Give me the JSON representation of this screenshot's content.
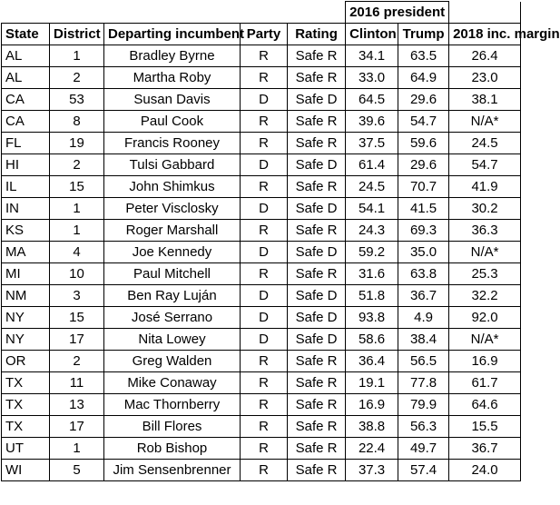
{
  "group_header": "2016 president",
  "columns": {
    "state": "State",
    "district": "District",
    "incumbent": "Departing incumbent",
    "party": "Party",
    "rating": "Rating",
    "clinton": "Clinton",
    "trump": "Trump",
    "margin": "2018 inc. margin"
  },
  "rows": [
    {
      "state": "AL",
      "district": "1",
      "incumbent": "Bradley Byrne",
      "party": "R",
      "rating": "Safe R",
      "clinton": "34.1",
      "trump": "63.5",
      "margin": "26.4"
    },
    {
      "state": "AL",
      "district": "2",
      "incumbent": "Martha Roby",
      "party": "R",
      "rating": "Safe R",
      "clinton": "33.0",
      "trump": "64.9",
      "margin": "23.0"
    },
    {
      "state": "CA",
      "district": "53",
      "incumbent": "Susan Davis",
      "party": "D",
      "rating": "Safe D",
      "clinton": "64.5",
      "trump": "29.6",
      "margin": "38.1"
    },
    {
      "state": "CA",
      "district": "8",
      "incumbent": "Paul Cook",
      "party": "R",
      "rating": "Safe R",
      "clinton": "39.6",
      "trump": "54.7",
      "margin": "N/A*"
    },
    {
      "state": "FL",
      "district": "19",
      "incumbent": "Francis Rooney",
      "party": "R",
      "rating": "Safe R",
      "clinton": "37.5",
      "trump": "59.6",
      "margin": "24.5"
    },
    {
      "state": "HI",
      "district": "2",
      "incumbent": "Tulsi Gabbard",
      "party": "D",
      "rating": "Safe D",
      "clinton": "61.4",
      "trump": "29.6",
      "margin": "54.7"
    },
    {
      "state": "IL",
      "district": "15",
      "incumbent": "John Shimkus",
      "party": "R",
      "rating": "Safe R",
      "clinton": "24.5",
      "trump": "70.7",
      "margin": "41.9"
    },
    {
      "state": "IN",
      "district": "1",
      "incumbent": "Peter Visclosky",
      "party": "D",
      "rating": "Safe D",
      "clinton": "54.1",
      "trump": "41.5",
      "margin": "30.2"
    },
    {
      "state": "KS",
      "district": "1",
      "incumbent": "Roger Marshall",
      "party": "R",
      "rating": "Safe R",
      "clinton": "24.3",
      "trump": "69.3",
      "margin": "36.3"
    },
    {
      "state": "MA",
      "district": "4",
      "incumbent": "Joe Kennedy",
      "party": "D",
      "rating": "Safe D",
      "clinton": "59.2",
      "trump": "35.0",
      "margin": "N/A*"
    },
    {
      "state": "MI",
      "district": "10",
      "incumbent": "Paul Mitchell",
      "party": "R",
      "rating": "Safe R",
      "clinton": "31.6",
      "trump": "63.8",
      "margin": "25.3"
    },
    {
      "state": "NM",
      "district": "3",
      "incumbent": "Ben Ray Luján",
      "party": "D",
      "rating": "Safe D",
      "clinton": "51.8",
      "trump": "36.7",
      "margin": "32.2"
    },
    {
      "state": "NY",
      "district": "15",
      "incumbent": "José Serrano",
      "party": "D",
      "rating": "Safe D",
      "clinton": "93.8",
      "trump": "4.9",
      "margin": "92.0"
    },
    {
      "state": "NY",
      "district": "17",
      "incumbent": "Nita Lowey",
      "party": "D",
      "rating": "Safe D",
      "clinton": "58.6",
      "trump": "38.4",
      "margin": "N/A*"
    },
    {
      "state": "OR",
      "district": "2",
      "incumbent": "Greg Walden",
      "party": "R",
      "rating": "Safe R",
      "clinton": "36.4",
      "trump": "56.5",
      "margin": "16.9"
    },
    {
      "state": "TX",
      "district": "11",
      "incumbent": "Mike Conaway",
      "party": "R",
      "rating": "Safe R",
      "clinton": "19.1",
      "trump": "77.8",
      "margin": "61.7"
    },
    {
      "state": "TX",
      "district": "13",
      "incumbent": "Mac Thornberry",
      "party": "R",
      "rating": "Safe R",
      "clinton": "16.9",
      "trump": "79.9",
      "margin": "64.6"
    },
    {
      "state": "TX",
      "district": "17",
      "incumbent": "Bill Flores",
      "party": "R",
      "rating": "Safe R",
      "clinton": "38.8",
      "trump": "56.3",
      "margin": "15.5"
    },
    {
      "state": "UT",
      "district": "1",
      "incumbent": "Rob Bishop",
      "party": "R",
      "rating": "Safe R",
      "clinton": "22.4",
      "trump": "49.7",
      "margin": "36.7"
    },
    {
      "state": "WI",
      "district": "5",
      "incumbent": "Jim Sensenbrenner",
      "party": "R",
      "rating": "Safe R",
      "clinton": "37.3",
      "trump": "57.4",
      "margin": "24.0"
    }
  ]
}
